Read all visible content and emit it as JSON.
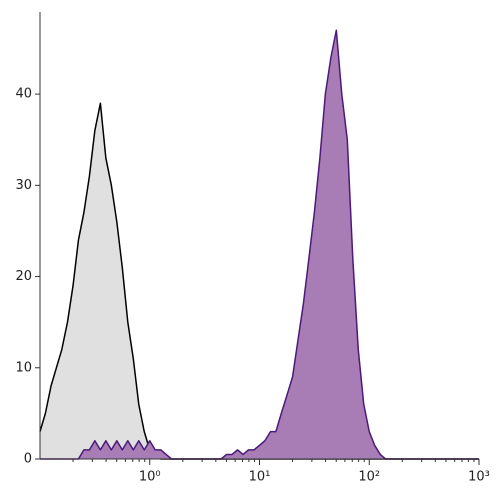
{
  "chart_data": {
    "type": "area",
    "xscale": "log",
    "grid": false,
    "x": [
      0.1,
      0.112,
      0.126,
      0.141,
      0.158,
      0.178,
      0.2,
      0.224,
      0.251,
      0.282,
      0.316,
      0.355,
      0.398,
      0.447,
      0.501,
      0.562,
      0.631,
      0.708,
      0.794,
      0.891,
      1,
      1.12,
      1.26,
      1.41,
      1.58,
      1.78,
      2,
      2.24,
      2.51,
      2.82,
      3.16,
      3.55,
      3.98,
      4.47,
      5.01,
      5.62,
      6.31,
      7.08,
      7.94,
      8.91,
      10,
      11.2,
      12.6,
      14.1,
      15.8,
      17.8,
      20,
      22.4,
      25.1,
      28.2,
      31.6,
      35.5,
      39.8,
      44.7,
      50.1,
      56.2,
      63.1,
      70.8,
      79.4,
      89.1,
      100,
      112,
      126,
      141,
      158,
      178,
      200,
      224,
      251,
      282,
      316,
      355,
      398,
      447,
      501,
      562,
      631,
      708,
      794,
      891,
      1000
    ],
    "series": [
      {
        "color": "#000000",
        "fill": "#e0e0e0",
        "values": [
          3,
          5,
          8,
          10,
          12,
          15,
          19,
          24,
          27,
          31,
          36,
          39,
          33,
          30,
          26,
          21,
          15,
          11,
          6,
          3,
          1,
          0.5,
          0,
          0,
          0,
          0,
          0,
          0,
          0,
          0,
          0,
          0,
          0,
          0,
          0,
          0,
          0,
          0,
          0,
          0,
          0,
          0,
          0,
          0,
          0,
          0,
          0,
          0,
          0,
          0,
          0,
          0,
          0,
          0,
          0,
          0,
          0,
          0,
          0,
          0,
          0,
          0,
          0,
          0,
          0,
          0,
          0,
          0,
          0,
          0,
          0,
          0,
          0,
          0,
          0,
          0,
          0,
          0,
          0,
          0,
          0
        ]
      },
      {
        "color": "#4b1a7a",
        "fill": "#a87cb4",
        "values": [
          0,
          0,
          0,
          0,
          0,
          0,
          0,
          0,
          1,
          1,
          2,
          1,
          2,
          1,
          2,
          1,
          2,
          1,
          2,
          1,
          2,
          1,
          1,
          0.5,
          0,
          0,
          0,
          0,
          0,
          0,
          0,
          0,
          0,
          0,
          0.5,
          0.5,
          1,
          0.5,
          1,
          1,
          1.5,
          2,
          3,
          3,
          5,
          7,
          9,
          13,
          17,
          22,
          27,
          33,
          40,
          44,
          47,
          40,
          35,
          22,
          12,
          6,
          3,
          1.5,
          0.5,
          0,
          0,
          0,
          0,
          0,
          0,
          0,
          0,
          0,
          0,
          0,
          0,
          0,
          0,
          0,
          0,
          0,
          0
        ]
      }
    ],
    "xlim": [
      0.1,
      1000
    ],
    "ylim": [
      0,
      49
    ],
    "xticks": [
      {
        "value": 1,
        "label": "10⁰"
      },
      {
        "value": 10,
        "label": "10¹"
      },
      {
        "value": 100,
        "label": "10²"
      },
      {
        "value": 1000,
        "label": "10³"
      }
    ],
    "yticks": [
      0,
      10,
      20,
      30,
      40
    ]
  }
}
